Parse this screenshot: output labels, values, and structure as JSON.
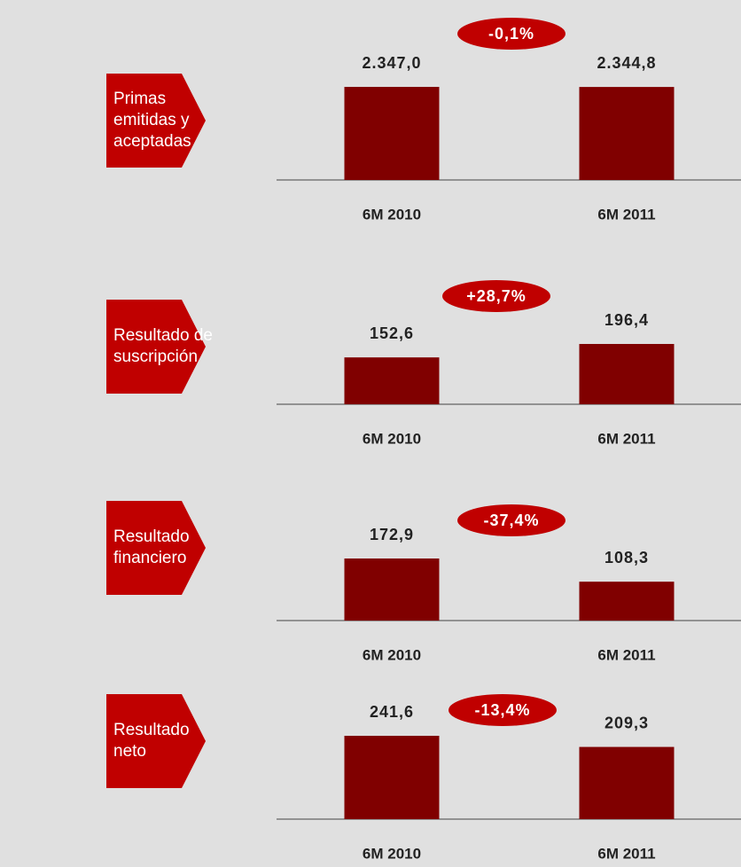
{
  "chart_data": [
    {
      "type": "bar",
      "title": "Primas emitidas y aceptadas",
      "categories": [
        "6M 2010",
        "6M 2011"
      ],
      "values": [
        2347.0,
        2344.8
      ],
      "value_labels": [
        "2.347,0",
        "2.344,8"
      ],
      "color": "#800000",
      "annotation": "-0,1%"
    },
    {
      "type": "bar",
      "title": "Resultado de suscripción",
      "categories": [
        "6M 2010",
        "6M 2011"
      ],
      "values": [
        152.6,
        196.4
      ],
      "value_labels": [
        "152,6",
        "196,4"
      ],
      "color": "#800000",
      "annotation": "+28,7%"
    },
    {
      "type": "bar",
      "title": "Resultado financiero",
      "categories": [
        "6M 2010",
        "6M 2011"
      ],
      "values": [
        172.9,
        108.3
      ],
      "value_labels": [
        "172,9",
        "108,3"
      ],
      "color": "#800000",
      "annotation": "-37,4%"
    },
    {
      "type": "bar",
      "title": "Resultado neto",
      "categories": [
        "6M 2010",
        "6M 2011"
      ],
      "values": [
        241.6,
        209.3
      ],
      "value_labels": [
        "241,6",
        "209,3"
      ],
      "color": "#800000",
      "annotation": "-13,4%"
    }
  ]
}
